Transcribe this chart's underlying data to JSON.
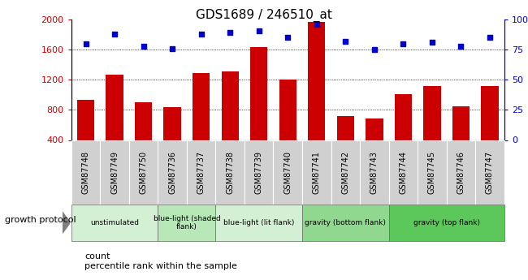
{
  "title": "GDS1689 / 246510_at",
  "samples": [
    "GSM87748",
    "GSM87749",
    "GSM87750",
    "GSM87736",
    "GSM87737",
    "GSM87738",
    "GSM87739",
    "GSM87740",
    "GSM87741",
    "GSM87742",
    "GSM87743",
    "GSM87744",
    "GSM87745",
    "GSM87746",
    "GSM87747"
  ],
  "counts": [
    930,
    1270,
    900,
    840,
    1290,
    1310,
    1630,
    1200,
    1970,
    720,
    690,
    1010,
    1120,
    850,
    1120
  ],
  "percentiles": [
    80,
    88,
    78,
    76,
    88,
    89,
    91,
    85,
    96,
    82,
    75,
    80,
    81,
    78,
    85
  ],
  "groups": [
    {
      "label": "unstimulated",
      "start": 0,
      "end": 3,
      "color": "#d4f0d4"
    },
    {
      "label": "blue-light (shaded\nflank)",
      "start": 3,
      "end": 5,
      "color": "#b8e8b8"
    },
    {
      "label": "blue-light (lit flank)",
      "start": 5,
      "end": 8,
      "color": "#d4f0d4"
    },
    {
      "label": "gravity (bottom flank)",
      "start": 8,
      "end": 11,
      "color": "#90d890"
    },
    {
      "label": "gravity (top flank)",
      "start": 11,
      "end": 15,
      "color": "#5cc85c"
    }
  ],
  "bar_color": "#cc0000",
  "dot_color": "#0000cc",
  "ylim_left": [
    400,
    2000
  ],
  "ylim_right": [
    0,
    100
  ],
  "yticks_left": [
    400,
    800,
    1200,
    1600,
    2000
  ],
  "yticks_right": [
    0,
    25,
    50,
    75,
    100
  ],
  "grid_values": [
    800,
    1200,
    1600
  ],
  "legend_count_label": "count",
  "legend_pct_label": "percentile rank within the sample",
  "growth_protocol_label": "growth protocol",
  "sample_bg_color": "#d0d0d0",
  "arrow_color": "#808080"
}
